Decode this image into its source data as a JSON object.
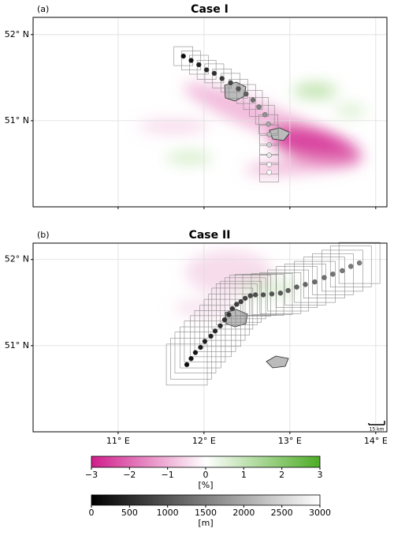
{
  "panels": [
    {
      "label": "(a)",
      "title": "Case I",
      "xlim": [
        10.01,
        14.13
      ],
      "ylim": [
        50.0,
        52.2
      ],
      "yticks": [
        {
          "value": 51,
          "label": "51° N"
        },
        {
          "value": 52,
          "label": "52° N"
        }
      ],
      "track": {
        "lon": [
          11.76,
          11.85,
          11.94,
          12.03,
          12.12,
          12.21,
          12.31,
          12.4,
          12.49,
          12.57,
          12.64,
          12.71,
          12.75,
          12.76,
          12.76,
          12.76,
          12.76,
          12.76
        ],
        "lat": [
          51.75,
          51.7,
          51.65,
          51.59,
          51.55,
          51.49,
          51.44,
          51.37,
          51.31,
          51.24,
          51.16,
          51.07,
          50.96,
          50.84,
          50.72,
          50.6,
          50.49,
          50.4
        ],
        "altitude": [
          150,
          250,
          350,
          450,
          550,
          650,
          800,
          950,
          1100,
          1300,
          1500,
          1700,
          1950,
          2200,
          2450,
          2700,
          2900,
          3000
        ]
      }
    },
    {
      "label": "(b)",
      "title": "Case II",
      "xlim": [
        10.01,
        14.13
      ],
      "ylim": [
        50.0,
        52.19
      ],
      "xticks": [
        {
          "value": 11,
          "label": "11° E"
        },
        {
          "value": 12,
          "label": "12° E"
        },
        {
          "value": 13,
          "label": "13° E"
        },
        {
          "value": 14,
          "label": "14° E"
        }
      ],
      "yticks": [
        {
          "value": 51,
          "label": "51° N"
        },
        {
          "value": 52,
          "label": "52° N"
        }
      ],
      "track": {
        "lon": [
          11.8,
          11.85,
          11.9,
          11.96,
          12.01,
          12.08,
          12.13,
          12.19,
          12.24,
          12.29,
          12.33,
          12.38,
          12.43,
          12.48,
          12.54,
          12.6,
          12.69,
          12.79,
          12.89,
          12.98,
          13.08,
          13.18,
          13.29,
          13.4,
          13.5,
          13.61,
          13.71,
          13.81
        ],
        "lat": [
          50.78,
          50.85,
          50.92,
          50.98,
          51.05,
          51.11,
          51.17,
          51.23,
          51.3,
          51.36,
          51.43,
          51.48,
          51.51,
          51.55,
          51.58,
          51.59,
          51.59,
          51.6,
          51.61,
          51.64,
          51.68,
          51.71,
          51.74,
          51.79,
          51.83,
          51.87,
          51.92,
          51.96
        ],
        "altitude": [
          150,
          200,
          250,
          300,
          350,
          400,
          450,
          500,
          550,
          600,
          650,
          700,
          750,
          800,
          850,
          900,
          950,
          1000,
          1050,
          1100,
          1150,
          1200,
          1250,
          1300,
          1350,
          1400,
          1450,
          1500
        ]
      },
      "scale_bar": "15 km"
    }
  ],
  "colorbars": [
    {
      "lim": [
        -3,
        3
      ],
      "ticks": [
        {
          "value": -3,
          "label": "−3"
        },
        {
          "value": -2,
          "label": "−2"
        },
        {
          "value": -1,
          "label": "−1"
        },
        0,
        1,
        2,
        3
      ],
      "label": "[%]",
      "colors": [
        "#d01c8b",
        "#ffffff",
        "#4dac26"
      ]
    },
    {
      "lim": [
        0,
        3000
      ],
      "ticks": [
        0,
        500,
        1000,
        1500,
        2000,
        2500,
        3000
      ],
      "label": "[m]",
      "colors": [
        "#000000",
        "#ffffff"
      ]
    }
  ]
}
